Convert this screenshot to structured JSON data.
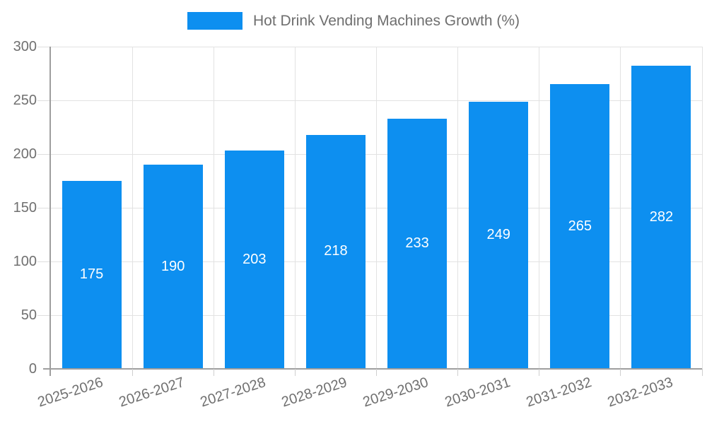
{
  "legend": {
    "label": "Hot Drink Vending Machines Growth (%)",
    "position": "top"
  },
  "chart_data": {
    "type": "bar",
    "title": "",
    "xlabel": "",
    "ylabel": "",
    "categories": [
      "2025-2026",
      "2026-2027",
      "2027-2028",
      "2028-2029",
      "2029-2030",
      "2030-2031",
      "2031-2032",
      "2032-2033"
    ],
    "series": [
      {
        "name": "Hot Drink Vending Machines Growth (%)",
        "values": [
          175,
          190,
          203,
          218,
          233,
          249,
          265,
          282
        ]
      }
    ],
    "value_labels": {
      "visible": true,
      "placement": "inside-center",
      "color": "#ffffff"
    },
    "ylim": [
      0,
      300
    ],
    "yticks": [
      0,
      50,
      100,
      150,
      200,
      250,
      300
    ],
    "grid": true,
    "x_tick_rotation_deg": -18,
    "legend_position": "top-center"
  },
  "colors": {
    "bar": "#0d8ff0",
    "grid": "#e2e2e2",
    "axis": "#9e9e9e",
    "tick_text": "#707070",
    "legend_text": "#6e6e6e",
    "value_text": "#ffffff",
    "background": "#ffffff"
  }
}
